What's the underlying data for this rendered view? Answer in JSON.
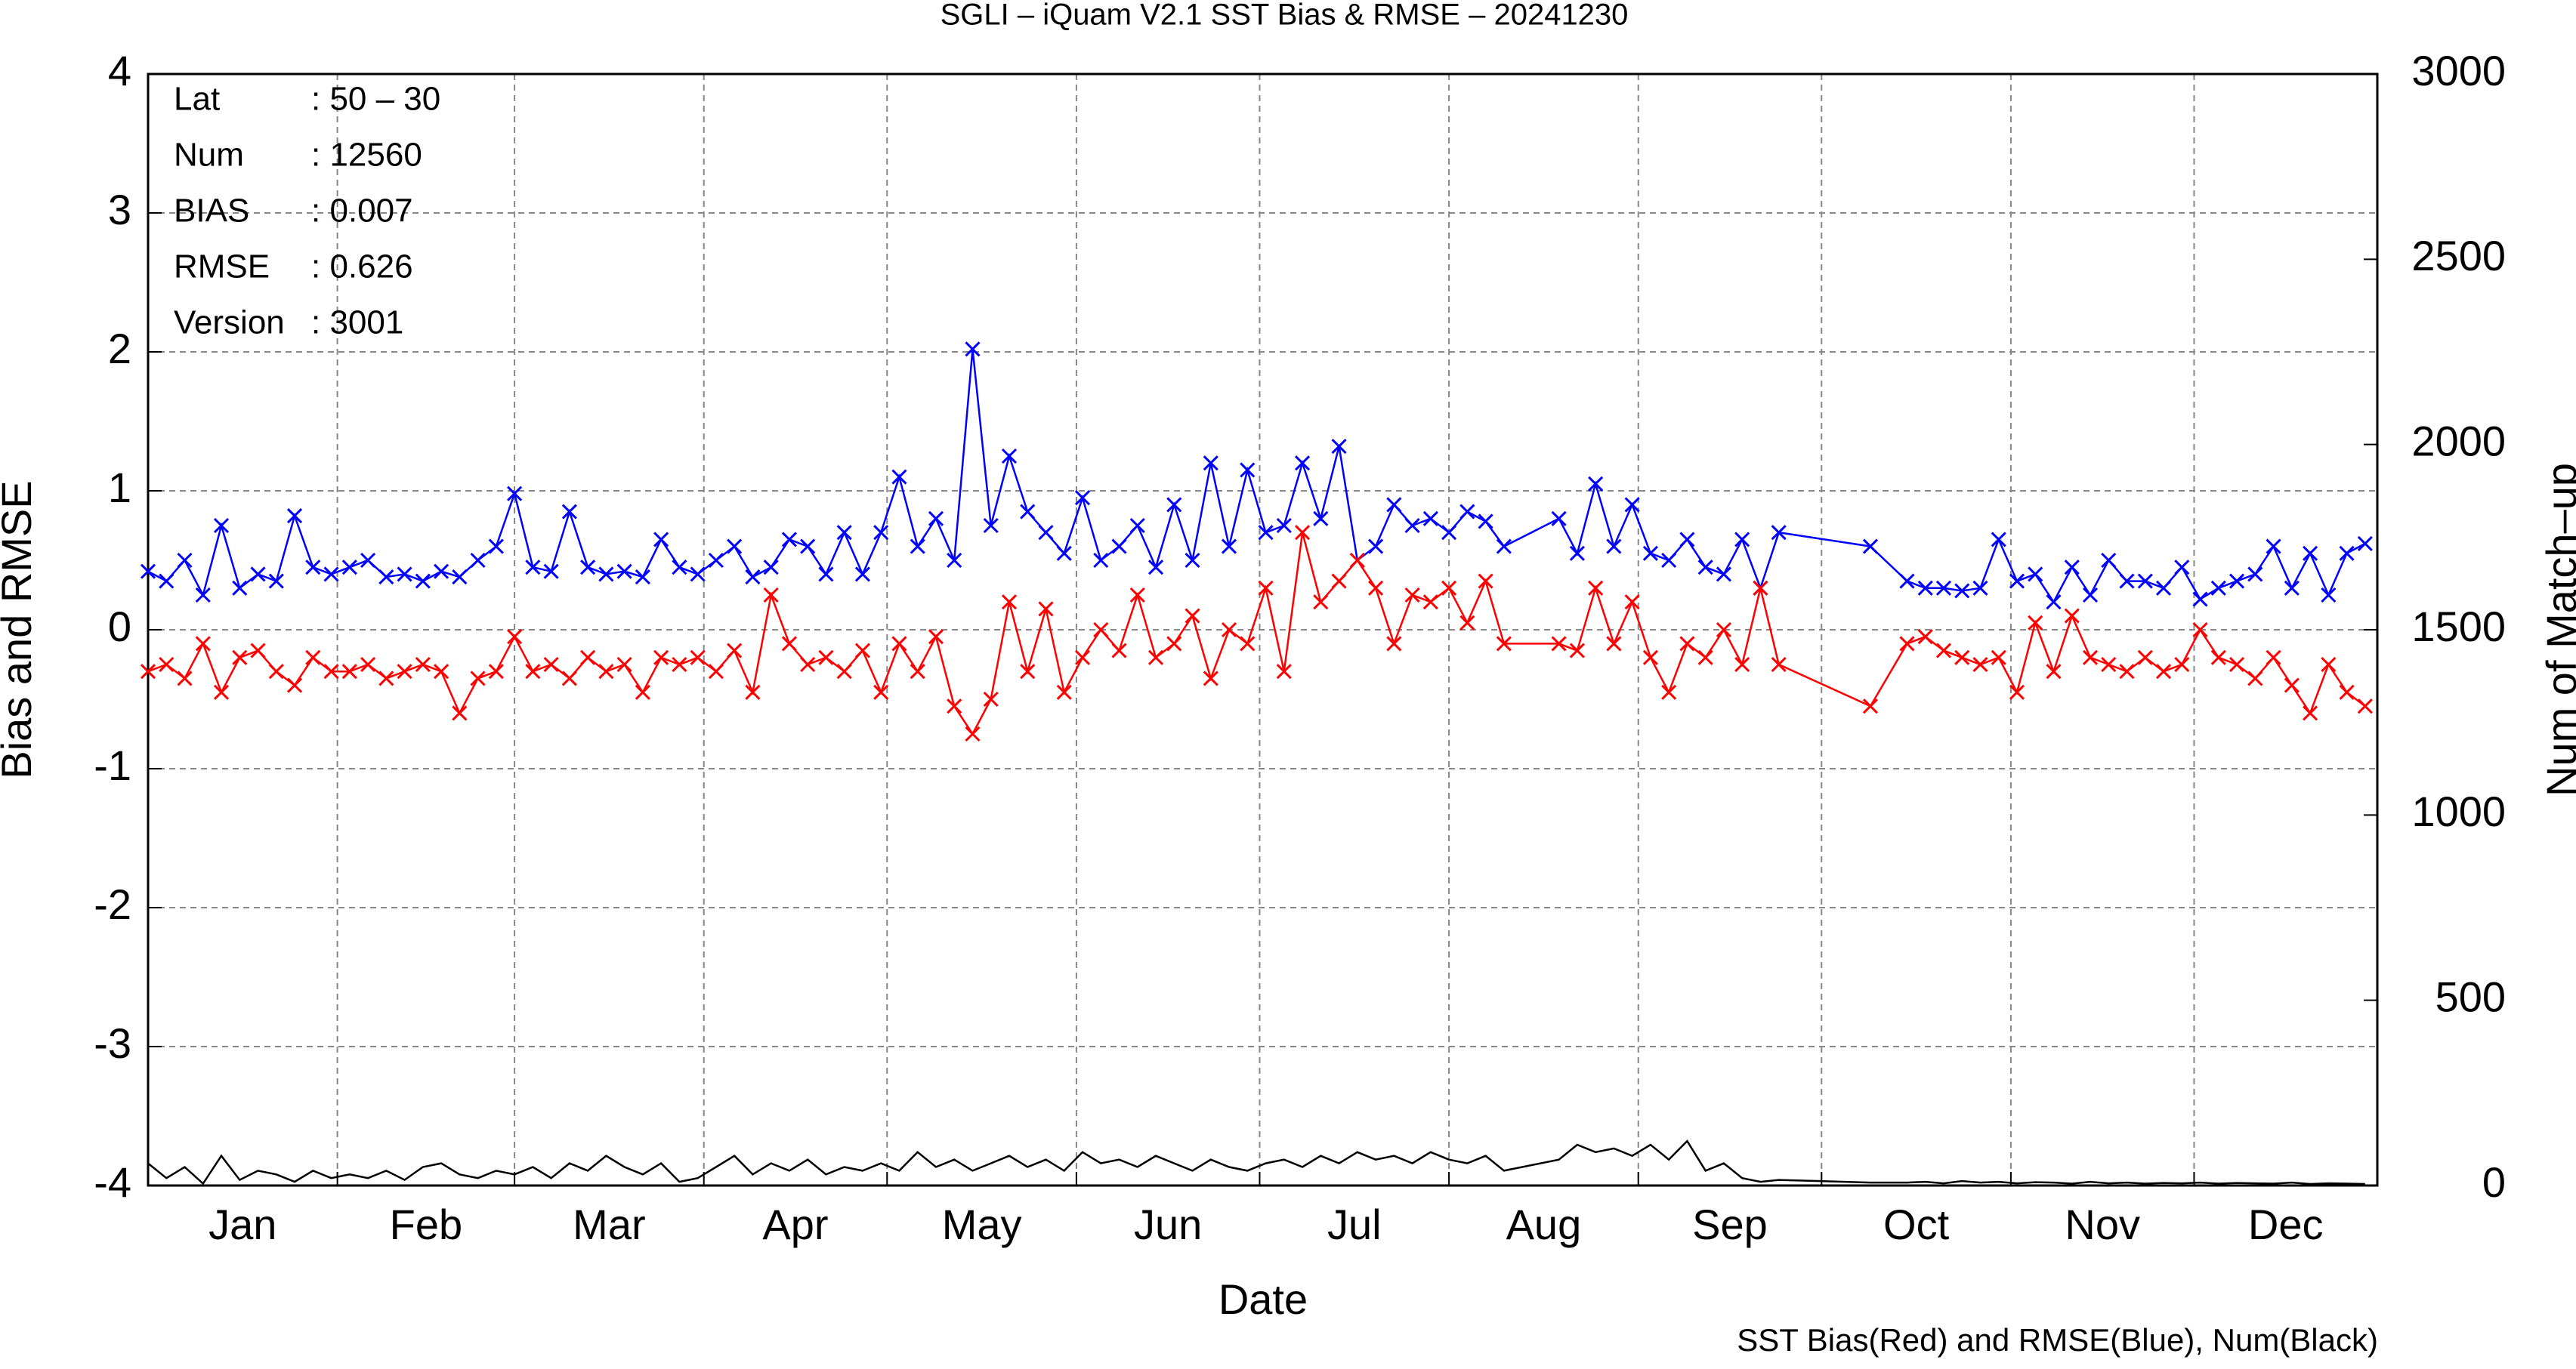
{
  "chart_data": {
    "type": "line",
    "title": "SGLI – iQuam V2.1 SST Bias & RMSE  – 20241230",
    "xlabel": "Date",
    "ylabel": "Bias and RMSE",
    "y2label": "Num of Match–up",
    "footnote": "SST Bias(Red) and RMSE(Blue), Num(Black)",
    "annotations": [
      {
        "label": "Lat",
        "value": ": 50 – 30"
      },
      {
        "label": "Num",
        "value": ": 12560"
      },
      {
        "label": "BIAS",
        "value": ": 0.007"
      },
      {
        "label": "RMSE",
        "value": ": 0.626"
      },
      {
        "label": "Version",
        "value": ": 3001"
      }
    ],
    "grid": true,
    "xlim": [
      1,
      366
    ],
    "xticks": [
      {
        "value": 1,
        "label": "Jan"
      },
      {
        "value": 32,
        "label": "Feb"
      },
      {
        "value": 61,
        "label": "Mar"
      },
      {
        "value": 92,
        "label": "Apr"
      },
      {
        "value": 122,
        "label": "May"
      },
      {
        "value": 153,
        "label": "Jun"
      },
      {
        "value": 183,
        "label": "Jul"
      },
      {
        "value": 214,
        "label": "Aug"
      },
      {
        "value": 245,
        "label": "Sep"
      },
      {
        "value": 275,
        "label": "Oct"
      },
      {
        "value": 306,
        "label": "Nov"
      },
      {
        "value": 336,
        "label": "Dec"
      }
    ],
    "ylim": [
      -4,
      4
    ],
    "yticks": [
      -4,
      -3,
      -2,
      -1,
      0,
      1,
      2,
      3,
      4
    ],
    "y2lim": [
      0,
      3000
    ],
    "y2ticks": [
      0,
      500,
      1000,
      1500,
      2000,
      2500,
      3000
    ],
    "x": [
      1,
      4,
      7,
      10,
      13,
      16,
      19,
      22,
      25,
      28,
      31,
      34,
      37,
      40,
      43,
      46,
      49,
      52,
      55,
      58,
      61,
      64,
      67,
      70,
      73,
      76,
      79,
      82,
      85,
      88,
      91,
      94,
      97,
      100,
      103,
      106,
      109,
      112,
      115,
      118,
      121,
      124,
      127,
      130,
      133,
      136,
      139,
      142,
      145,
      148,
      151,
      154,
      157,
      160,
      163,
      166,
      169,
      172,
      175,
      178,
      181,
      184,
      187,
      190,
      193,
      196,
      199,
      202,
      205,
      208,
      211,
      214,
      217,
      220,
      223,
      232,
      235,
      238,
      241,
      244,
      247,
      250,
      253,
      256,
      259,
      262,
      265,
      268,
      283,
      289,
      292,
      295,
      298,
      301,
      304,
      307,
      310,
      313,
      316,
      319,
      322,
      325,
      328,
      331,
      334,
      337,
      340,
      343,
      346,
      349,
      352,
      355,
      358,
      361,
      364
    ],
    "series": [
      {
        "name": "RMSE",
        "color": "#0000ff",
        "marker": true,
        "values": [
          0.42,
          0.35,
          0.5,
          0.25,
          0.75,
          0.3,
          0.4,
          0.35,
          0.82,
          0.45,
          0.4,
          0.45,
          0.5,
          0.38,
          0.4,
          0.35,
          0.42,
          0.38,
          0.5,
          0.6,
          0.98,
          0.45,
          0.42,
          0.85,
          0.45,
          0.4,
          0.42,
          0.38,
          0.65,
          0.45,
          0.4,
          0.5,
          0.6,
          0.38,
          0.45,
          0.65,
          0.6,
          0.4,
          0.7,
          0.4,
          0.7,
          1.1,
          0.6,
          0.8,
          0.5,
          2.02,
          0.75,
          1.25,
          0.85,
          0.7,
          0.55,
          0.95,
          0.5,
          0.6,
          0.75,
          0.45,
          0.9,
          0.5,
          1.2,
          0.6,
          1.15,
          0.7,
          0.75,
          1.2,
          0.8,
          1.32,
          0.5,
          0.6,
          0.9,
          0.75,
          0.8,
          0.7,
          0.85,
          0.78,
          0.6,
          0.8,
          0.55,
          1.05,
          0.6,
          0.9,
          0.55,
          0.5,
          0.65,
          0.45,
          0.4,
          0.65,
          0.3,
          0.7,
          0.6,
          0.35,
          0.3,
          0.3,
          0.28,
          0.3,
          0.65,
          0.35,
          0.4,
          0.2,
          0.45,
          0.25,
          0.5,
          0.35,
          0.35,
          0.3,
          0.45,
          0.22,
          0.3,
          0.35,
          0.4,
          0.6,
          0.3,
          0.55,
          0.25,
          0.55,
          0.62
        ]
      },
      {
        "name": "Bias",
        "color": "#ff0000",
        "marker": true,
        "values": [
          -0.3,
          -0.25,
          -0.35,
          -0.1,
          -0.45,
          -0.2,
          -0.15,
          -0.3,
          -0.4,
          -0.2,
          -0.3,
          -0.3,
          -0.25,
          -0.35,
          -0.3,
          -0.25,
          -0.3,
          -0.6,
          -0.35,
          -0.3,
          -0.05,
          -0.3,
          -0.25,
          -0.35,
          -0.2,
          -0.3,
          -0.25,
          -0.45,
          -0.2,
          -0.25,
          -0.2,
          -0.3,
          -0.15,
          -0.45,
          0.25,
          -0.1,
          -0.25,
          -0.2,
          -0.3,
          -0.15,
          -0.45,
          -0.1,
          -0.3,
          -0.05,
          -0.55,
          -0.75,
          -0.5,
          0.2,
          -0.3,
          0.15,
          -0.45,
          -0.2,
          0.0,
          -0.15,
          0.25,
          -0.2,
          -0.1,
          0.1,
          -0.35,
          0.0,
          -0.1,
          0.3,
          -0.3,
          0.7,
          0.2,
          0.35,
          0.5,
          0.3,
          -0.1,
          0.25,
          0.2,
          0.3,
          0.05,
          0.35,
          -0.1,
          -0.1,
          -0.15,
          0.3,
          -0.1,
          0.2,
          -0.2,
          -0.45,
          -0.1,
          -0.2,
          0.0,
          -0.25,
          0.3,
          -0.25,
          -0.55,
          -0.1,
          -0.05,
          -0.15,
          -0.2,
          -0.25,
          -0.2,
          -0.45,
          0.05,
          -0.3,
          0.1,
          -0.2,
          -0.25,
          -0.3,
          -0.2,
          -0.3,
          -0.25,
          0.0,
          -0.2,
          -0.25,
          -0.35,
          -0.2,
          -0.4,
          -0.6,
          -0.25,
          -0.45,
          -0.55
        ]
      },
      {
        "name": "Num",
        "color": "#000000",
        "marker": false,
        "axis": "y2",
        "values": [
          60,
          20,
          50,
          5,
          80,
          15,
          40,
          30,
          10,
          40,
          20,
          30,
          20,
          40,
          15,
          50,
          60,
          30,
          20,
          40,
          30,
          50,
          20,
          60,
          40,
          80,
          50,
          30,
          60,
          10,
          20,
          50,
          80,
          30,
          60,
          40,
          70,
          30,
          50,
          40,
          60,
          40,
          90,
          50,
          70,
          40,
          60,
          80,
          50,
          70,
          40,
          90,
          60,
          70,
          50,
          80,
          60,
          40,
          70,
          50,
          40,
          60,
          70,
          50,
          80,
          60,
          90,
          70,
          80,
          60,
          90,
          70,
          60,
          80,
          40,
          70,
          110,
          90,
          100,
          80,
          110,
          70,
          120,
          40,
          60,
          20,
          10,
          15,
          8,
          8,
          10,
          6,
          12,
          8,
          10,
          6,
          9,
          8,
          5,
          10,
          6,
          8,
          5,
          7,
          6,
          8,
          5,
          7,
          6,
          5,
          8,
          4,
          6,
          5,
          4
        ]
      }
    ]
  }
}
